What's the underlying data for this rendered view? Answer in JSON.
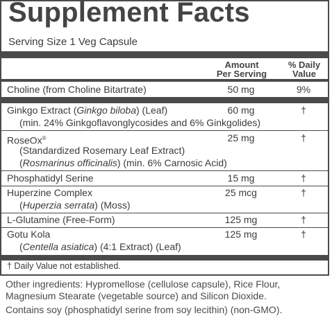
{
  "title": "Supplement Facts",
  "serving_size": "Serving Size 1 Veg Capsule",
  "headers": {
    "amount": "Amount",
    "per_serving": "Per Serving",
    "daily": "% Daily",
    "value": "Value"
  },
  "rows": [
    {
      "name": "Choline (from Choline Bitartrate)",
      "amount": "50 mg",
      "dv": "9%"
    },
    {
      "name_a": "Ginkgo Extract (",
      "name_i": "Ginkgo biloba",
      "name_b": ") (Leaf)",
      "detail": "(min. 24% Ginkgoflavonglycosides and 6% Ginkgolides)",
      "amount": "60 mg",
      "dv": "†"
    },
    {
      "name": "RoseOx",
      "reg": "®",
      "detail1": "(Standardized Rosemary Leaf Extract)",
      "detail2_open": "(",
      "detail2_i": "Rosmarinus officinalis",
      "detail2_rest": ") (min. 6% Carnosic Acid)",
      "amount": "25 mg",
      "dv": "†"
    },
    {
      "name": "Phosphatidyl Serine",
      "amount": "15 mg",
      "dv": "†"
    },
    {
      "name": "Huperzine Complex",
      "detail_open": "(",
      "detail_i": "Huperzia serrata",
      "detail_rest": ") (Moss)",
      "amount": "25 mcg",
      "dv": "†"
    },
    {
      "name": "L-Glutamine (Free-Form)",
      "amount": "125 mg",
      "dv": "†"
    },
    {
      "name": "Gotu Kola",
      "detail_open": "(",
      "detail_i": "Centella asiatica",
      "detail_rest": ") (4:1 Extract) (Leaf)",
      "amount": "125 mg",
      "dv": "†"
    }
  ],
  "footnote": "† Daily Value not established.",
  "other_line1": "Other ingredients: Hypromellose (cellulose capsule), Rice Flour,",
  "other_line2": "Magnesium Stearate (vegetable source) and Silicon Dioxide.",
  "contains": "Contains soy (phosphatidyl serine from soy lecithin) (non-GMO)."
}
